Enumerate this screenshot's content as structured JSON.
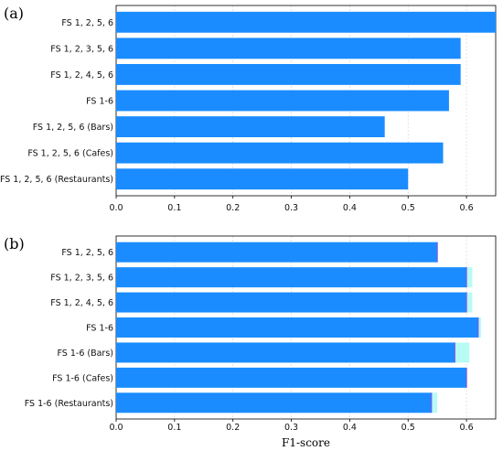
{
  "chart_data": [
    {
      "type": "bar",
      "orientation": "horizontal",
      "panel_label": "(a)",
      "categories": [
        "FS 1, 2, 5, 6",
        "FS 1, 2, 3, 5, 6",
        "FS 1, 2, 4, 5, 6",
        "FS 1-6",
        "FS 1, 2, 5, 6 (Bars)",
        "FS 1, 2, 5, 6 (Cafes)",
        "FS 1, 2, 5, 6 (Restaurants)"
      ],
      "values": [
        0.65,
        0.59,
        0.59,
        0.57,
        0.46,
        0.56,
        0.5
      ],
      "xlim": [
        0.0,
        0.65
      ],
      "xticks": [
        "0.0",
        "0.1",
        "0.2",
        "0.3",
        "0.4",
        "0.5",
        "0.6"
      ],
      "xlabel": "",
      "grid": true,
      "colors": {
        "bar": "#1a8cff"
      }
    },
    {
      "type": "bar",
      "orientation": "horizontal",
      "panel_label": "(b)",
      "categories": [
        "FS 1, 2, 5, 6",
        "FS 1, 2, 3, 5, 6",
        "FS 1, 2, 4, 5, 6",
        "FS 1-6",
        "FS 1-6 (Bars)",
        "FS 1-6 (Cafes)",
        "FS 1-6 (Restaurants)"
      ],
      "values": [
        0.55,
        0.6,
        0.6,
        0.62,
        0.58,
        0.6,
        0.54
      ],
      "upper": [
        0.55,
        0.61,
        0.61,
        0.625,
        0.605,
        0.6,
        0.55
      ],
      "xlim": [
        0.0,
        0.65
      ],
      "xticks": [
        "0.0",
        "0.1",
        "0.2",
        "0.3",
        "0.4",
        "0.5",
        "0.6"
      ],
      "xlabel": "F1-score",
      "grid": true,
      "colors": {
        "bar": "#1a8cff",
        "upper": "#b8fbf5",
        "edge": "#7b5ce6"
      }
    }
  ]
}
